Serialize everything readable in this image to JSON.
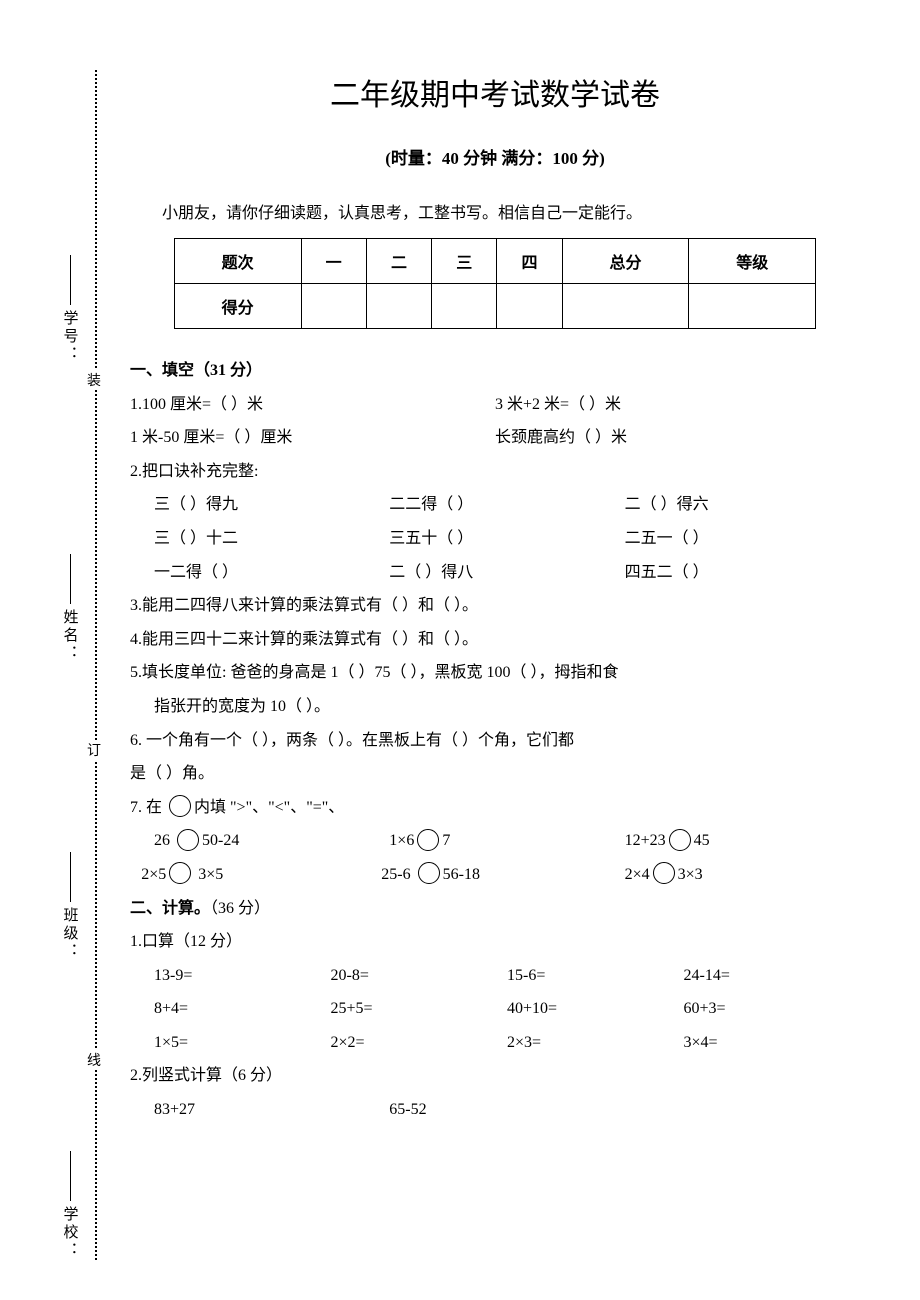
{
  "title": "二年级期中考试数学试卷",
  "subtitle": "(时量：40 分钟      满分：100 分)",
  "intro": "小朋友，请你仔细读题，认真思考，工整书写。相信自己一定能行。",
  "binding": {
    "mark1": "装",
    "mark2": "订",
    "mark3": "线"
  },
  "sideLabels": {
    "studentId": "学号：",
    "name": "姓名：",
    "class": "班级：",
    "school": "学校："
  },
  "scoreTable": {
    "headers": [
      "题次",
      "一",
      "二",
      "三",
      "四",
      "总分",
      "等级"
    ],
    "rowLabel": "得分"
  },
  "section1": {
    "title": "一、填空（31 分）",
    "q1a": "1.100 厘米=（        ）米",
    "q1b": "3 米+2 米=（        ）米",
    "q1c": " 1 米-50 厘米=（        ）厘米",
    "q1d": "长颈鹿高约（        ）米",
    "q2": "2.把口诀补充完整:",
    "q2a": "三（    ）得九",
    "q2b": "二二得（    ）",
    "q2c": "二（    ）得六",
    "q2d": "三（    ）十二",
    "q2e": "三五十（    ）",
    "q2f": "二五一（    ）",
    "q2g": "一二得（    ）",
    "q2h": "二（    ）得八",
    "q2i": "四五二（    ）",
    "q3": "3.能用二四得八来计算的乘法算式有（            ）和（            ）。",
    "q4": "4.能用三四十二来计算的乘法算式有（            ）和（            ）。",
    "q5": "5.填长度单位: 爸爸的身高是 1（    ）75（    ），黑板宽 100（    ），拇指和食",
    "q5b": "指张开的宽度为 10（        ）。",
    "q6": "6. 一个角有一个（        ），两条（        ）。在黑板上有（    ）个角，它们都",
    "q6b": "是（    ）角。",
    "q7": "7.  在     内填 \">\"、\"<\"、\"=\"、",
    "q7a1": "26",
    "q7a2": "50-24",
    "q7b1": "1×6",
    "q7b2": "7",
    "q7c1": "12+23",
    "q7c2": "45",
    "q7d1": "2×5",
    "q7d2": "3×5",
    "q7e1": "25-6",
    "q7e2": "56-18",
    "q7f1": "2×4",
    "q7f2": "3×3"
  },
  "section2": {
    "title": "二、计算。（36 分）",
    "q1": "1.口算（12 分）",
    "calc": [
      [
        "13-9=",
        "20-8=",
        "15-6=",
        "24-14="
      ],
      [
        "8+4=",
        "25+5=",
        "40+10=",
        "60+3="
      ],
      [
        "1×5=",
        "2×2=",
        "2×3=",
        "3×4="
      ]
    ],
    "q2": "2.列竖式计算（6 分）",
    "q2a": "83+27",
    "q2b": "65-52"
  }
}
